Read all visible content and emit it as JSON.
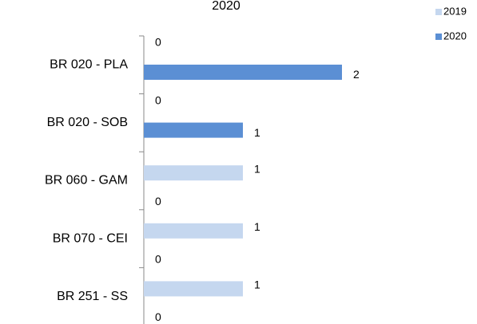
{
  "chart_data": {
    "type": "barh",
    "title": "2020",
    "categories": [
      "BR 020 - PLA",
      "BR 020 - SOB",
      "BR 060 - GAM",
      "BR 070 - CEI",
      "BR 251 - SS"
    ],
    "series": [
      {
        "name": "2019",
        "color": "#c5d7ef",
        "values": [
          0,
          0,
          1,
          1,
          1
        ]
      },
      {
        "name": "2020",
        "color": "#5b8fd4",
        "values": [
          2,
          1,
          0,
          0,
          0
        ]
      }
    ],
    "xlim": [
      0,
      3
    ],
    "legend": "top-right"
  }
}
